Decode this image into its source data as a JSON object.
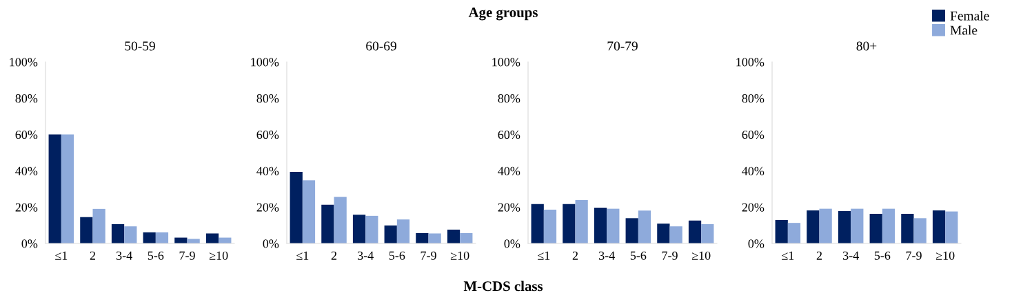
{
  "chart_data": [
    {
      "type": "bar",
      "title": "50-59",
      "categories": [
        "≤1",
        "2",
        "3-4",
        "5-6",
        "7-9",
        "≥10"
      ],
      "ylim": [
        0,
        100
      ],
      "yticks": [
        {
          "value": 0,
          "label": "0%"
        },
        {
          "value": 20,
          "label": "20%"
        },
        {
          "value": 40,
          "label": "40%"
        },
        {
          "value": 60,
          "label": "60%"
        },
        {
          "value": 80,
          "label": "80%"
        },
        {
          "value": 100,
          "label": "100%"
        }
      ],
      "annotations": [
        "Age groups",
        "M-CDS class"
      ],
      "series": [
        {
          "color": "#002060",
          "values": [
            60,
            14.5,
            10.6,
            6.1,
            3.2,
            5.5
          ]
        },
        {
          "color": "#8eaadb",
          "values": [
            60,
            19.0,
            9.4,
            6.1,
            2.5,
            3.2
          ]
        }
      ]
    },
    {
      "type": "bar",
      "title": "60-69",
      "categories": [
        "≤1",
        "2",
        "3-4",
        "5-6",
        "7-9",
        "≥10"
      ],
      "ylim": [
        0,
        100
      ],
      "yticks": [
        {
          "value": 0,
          "label": "0%"
        },
        {
          "value": 20,
          "label": "20%"
        },
        {
          "value": 40,
          "label": "40%"
        },
        {
          "value": 60,
          "label": "60%"
        },
        {
          "value": 80,
          "label": "80%"
        },
        {
          "value": 100,
          "label": "100%"
        }
      ],
      "series": [
        {
          "color": "#002060",
          "values": [
            39.4,
            21.3,
            15.8,
            9.9,
            5.7,
            7.6
          ]
        },
        {
          "color": "#8eaadb",
          "values": [
            34.8,
            25.7,
            15.2,
            13.2,
            5.5,
            5.7
          ]
        }
      ]
    },
    {
      "type": "bar",
      "title": "70-79",
      "categories": [
        "≤1",
        "2",
        "3-4",
        "5-6",
        "7-9",
        "≥10"
      ],
      "ylim": [
        0,
        100
      ],
      "yticks": [
        {
          "value": 0,
          "label": "0%"
        },
        {
          "value": 20,
          "label": "20%"
        },
        {
          "value": 40,
          "label": "40%"
        },
        {
          "value": 60,
          "label": "60%"
        },
        {
          "value": 80,
          "label": "80%"
        },
        {
          "value": 100,
          "label": "100%"
        }
      ],
      "series": [
        {
          "color": "#002060",
          "values": [
            21.7,
            21.7,
            19.7,
            13.9,
            10.9,
            12.6
          ]
        },
        {
          "color": "#8eaadb",
          "values": [
            18.6,
            23.9,
            19.1,
            18.1,
            9.4,
            10.6
          ]
        }
      ]
    },
    {
      "type": "bar",
      "title": "80+",
      "categories": [
        "≤1",
        "2",
        "3-4",
        "5-6",
        "7-9",
        "≥10"
      ],
      "ylim": [
        0,
        100
      ],
      "yticks": [
        {
          "value": 0,
          "label": "0%"
        },
        {
          "value": 20,
          "label": "20%"
        },
        {
          "value": 40,
          "label": "40%"
        },
        {
          "value": 60,
          "label": "60%"
        },
        {
          "value": 80,
          "label": "80%"
        },
        {
          "value": 100,
          "label": "100%"
        }
      ],
      "legend": "top right",
      "series": [
        {
          "name": "Female",
          "color": "#002060",
          "values": [
            12.9,
            18.2,
            17.8,
            16.3,
            16.3,
            18.2
          ]
        },
        {
          "name": "Male",
          "color": "#8eaadb",
          "values": [
            11.3,
            19.1,
            19.1,
            19.1,
            13.9,
            17.6
          ]
        }
      ]
    }
  ]
}
